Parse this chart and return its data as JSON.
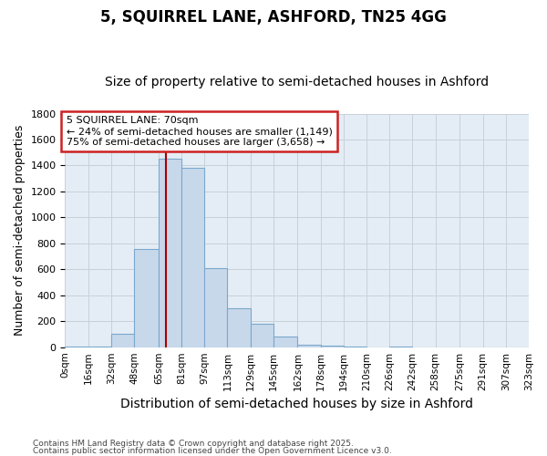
{
  "title1": "5, SQUIRREL LANE, ASHFORD, TN25 4GG",
  "title2": "Size of property relative to semi-detached houses in Ashford",
  "xlabel": "Distribution of semi-detached houses by size in Ashford",
  "ylabel": "Number of semi-detached properties",
  "footer1": "Contains HM Land Registry data © Crown copyright and database right 2025.",
  "footer2": "Contains public sector information licensed under the Open Government Licence v3.0.",
  "bin_edges": [
    0,
    16,
    32,
    48,
    65,
    81,
    97,
    113,
    129,
    145,
    162,
    178,
    194,
    210,
    226,
    242,
    258,
    275,
    291,
    307,
    323
  ],
  "bin_labels": [
    "0sqm",
    "16sqm",
    "32sqm",
    "48sqm",
    "65sqm",
    "81sqm",
    "97sqm",
    "113sqm",
    "129sqm",
    "145sqm",
    "162sqm",
    "178sqm",
    "194sqm",
    "210sqm",
    "226sqm",
    "242sqm",
    "258sqm",
    "275sqm",
    "291sqm",
    "307sqm",
    "323sqm"
  ],
  "bar_values": [
    5,
    2,
    100,
    760,
    1450,
    1380,
    610,
    300,
    180,
    85,
    20,
    10,
    3,
    0,
    2,
    0,
    0,
    0,
    0,
    0
  ],
  "bar_color": "#c8d8eb",
  "bar_edge_color": "#7aa8cc",
  "grid_color": "#c8d0d8",
  "bg_color": "#e4edf5",
  "vline_x": 70,
  "vline_color": "#aa0000",
  "annotation_text": "5 SQUIRREL LANE: 70sqm\n← 24% of semi-detached houses are smaller (1,149)\n75% of semi-detached houses are larger (3,658) →",
  "annotation_box_color": "#ffffff",
  "annotation_border_color": "#cc2222",
  "ylim": [
    0,
    1800
  ],
  "yticks": [
    0,
    200,
    400,
    600,
    800,
    1000,
    1200,
    1400,
    1600,
    1800
  ],
  "title1_fontsize": 12,
  "title2_fontsize": 10,
  "xlabel_fontsize": 10,
  "ylabel_fontsize": 9
}
